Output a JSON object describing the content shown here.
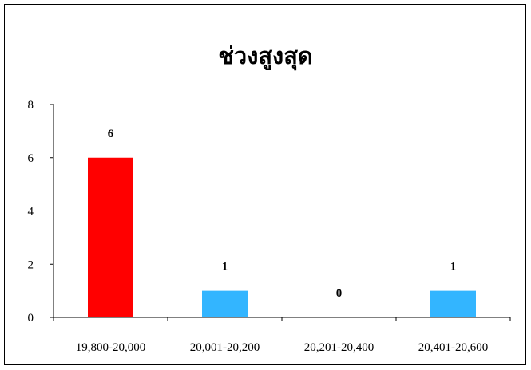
{
  "chart_data": {
    "type": "bar",
    "title": "ช่วงสูงสุด",
    "categories": [
      "19,800-20,000",
      "20,001-20,200",
      "20,201-20,400",
      "20,401-20,600"
    ],
    "values": [
      6,
      1,
      0,
      1
    ],
    "colors": [
      "#ff0000",
      "#33b5ff",
      "#33b5ff",
      "#33b5ff"
    ],
    "ylim": [
      0,
      8
    ],
    "yticks": [
      0,
      2,
      4,
      6,
      8
    ],
    "xlabel": "",
    "ylabel": "",
    "grid": false,
    "data_labels": true
  }
}
